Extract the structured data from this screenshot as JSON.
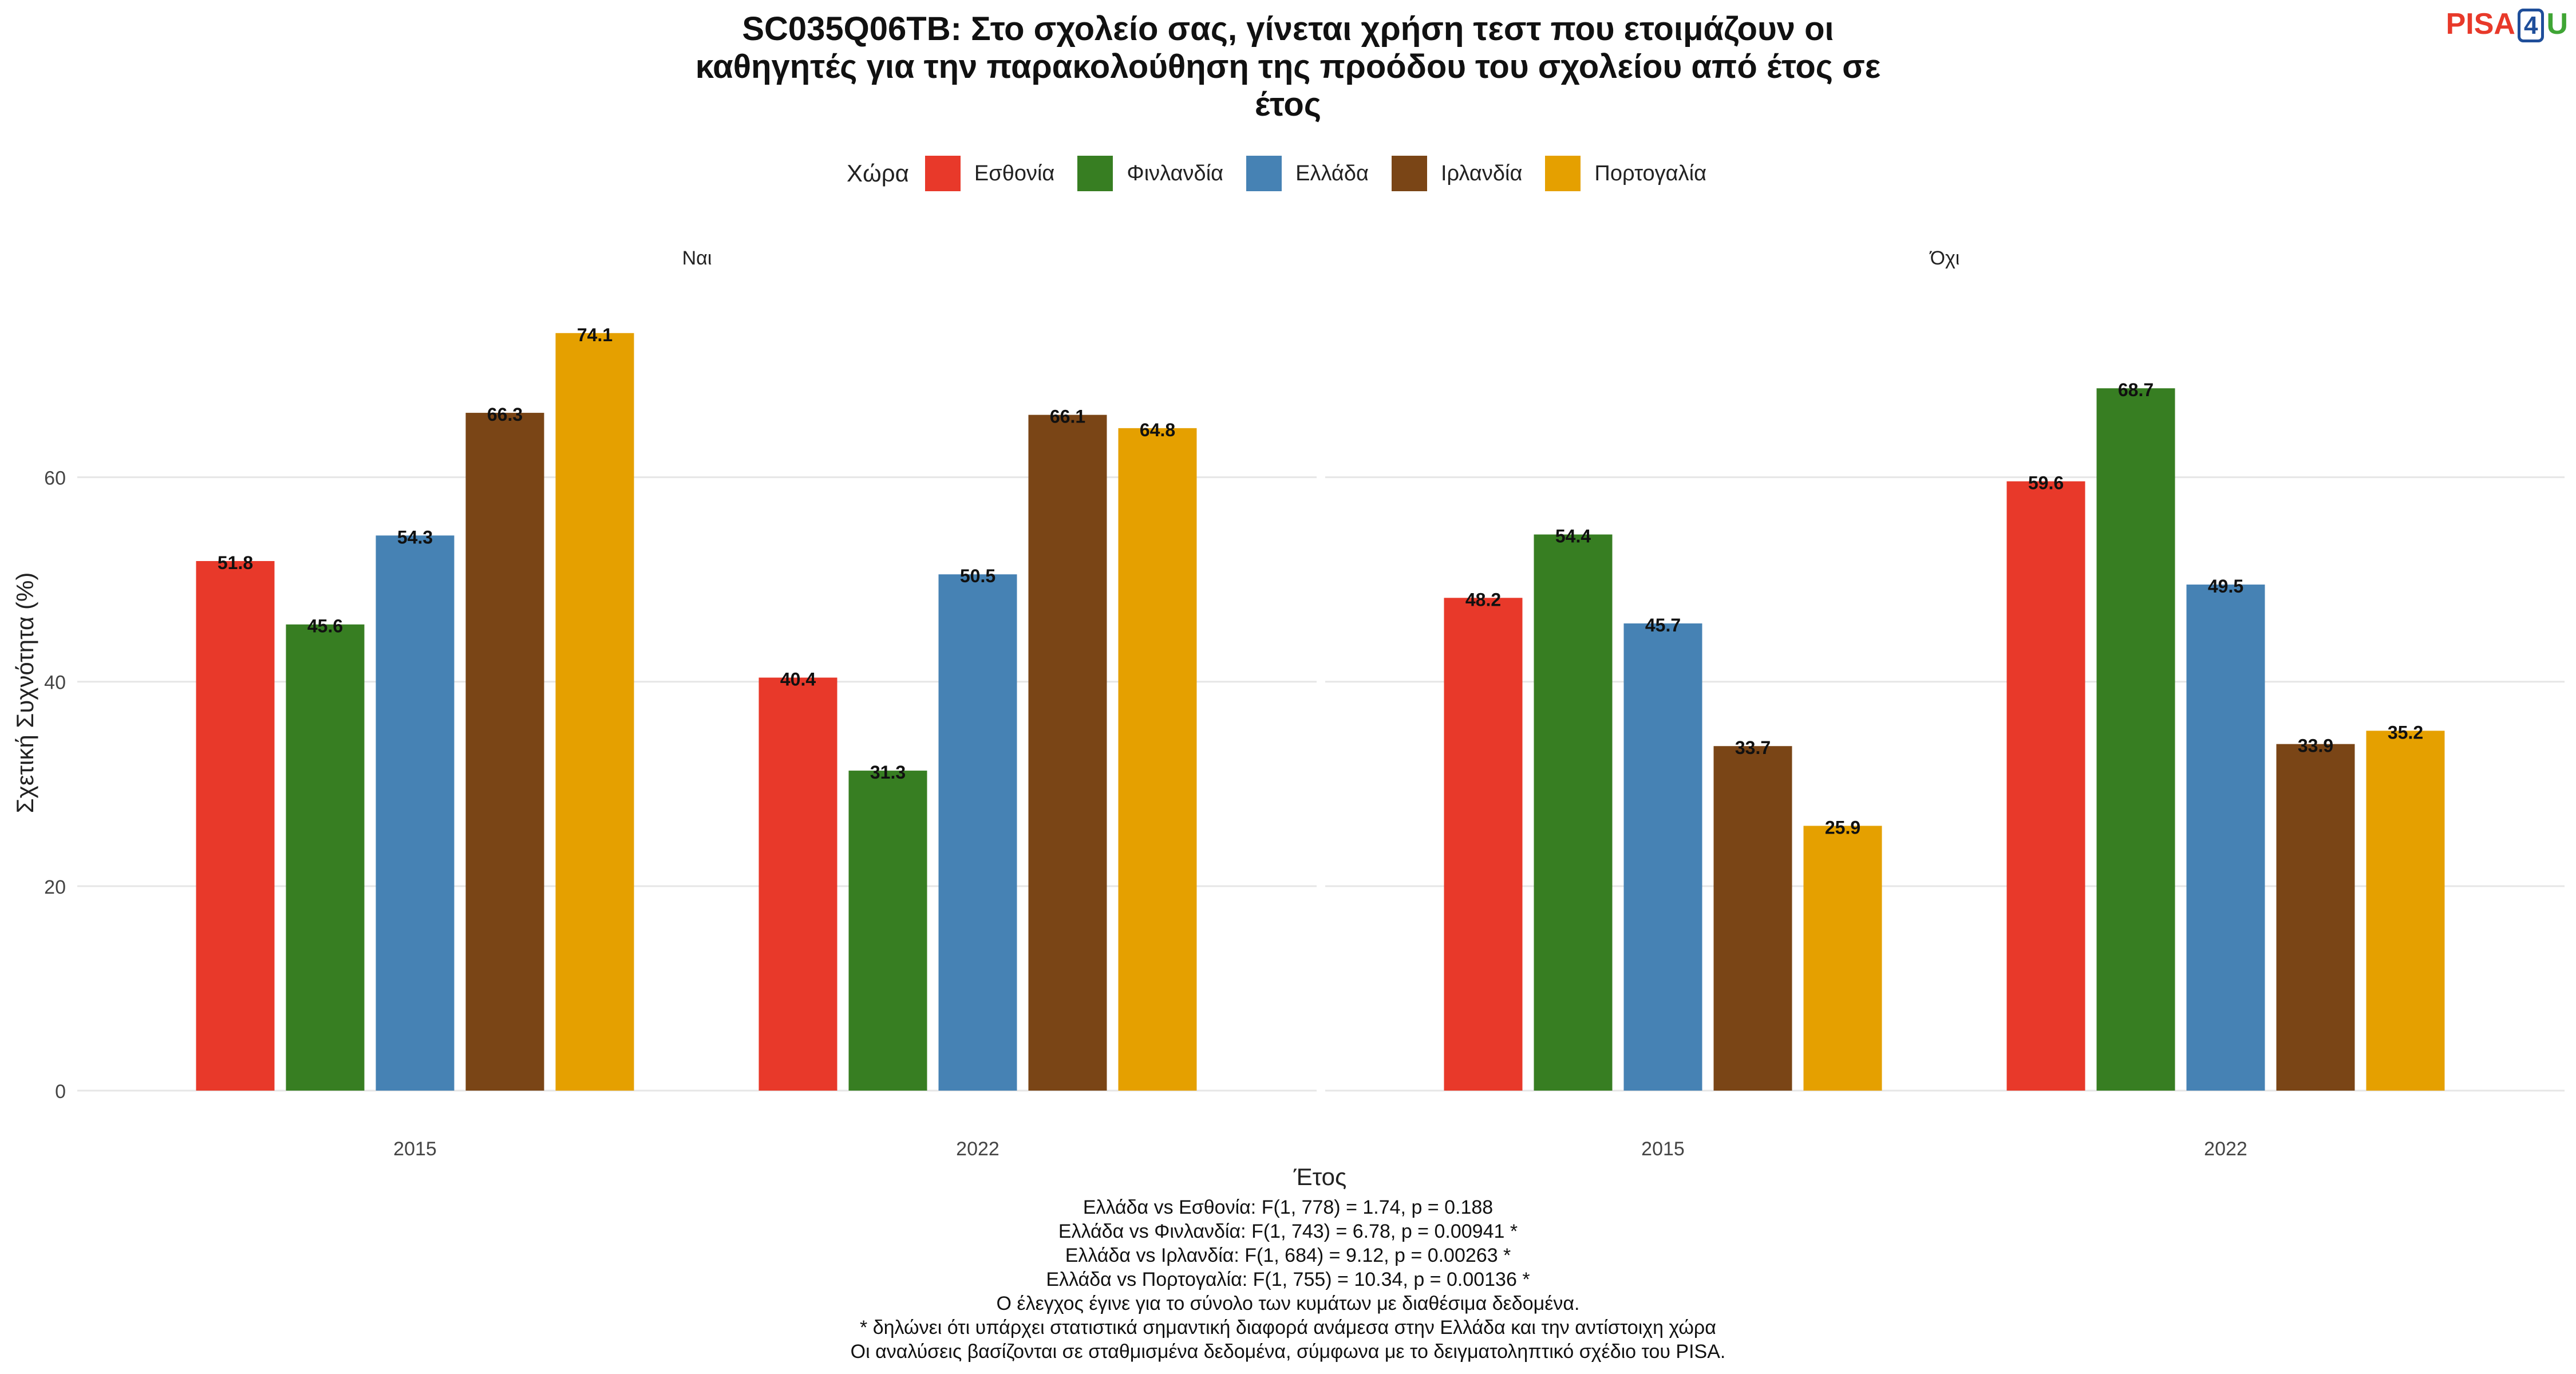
{
  "title_lines": [
    "SC035Q06TB: Στο σχολείο σας, γίνεται χρήση τεστ που ετοιμάζουν οι",
    "καθηγητές για την παρακολούθηση της προόδου του σχολείου από έτος σε",
    "έτος"
  ],
  "logo": {
    "part1": "PISA",
    "part2": "4",
    "part3": "U"
  },
  "legend": {
    "title": "Χώρα"
  },
  "caption_lines": [
    "Ελλάδα vs Εσθονία: F(1, 778) = 1.74, p = 0.188",
    "Ελλάδα vs Φινλανδία: F(1, 743) = 6.78, p = 0.00941 *",
    "Ελλάδα vs Ιρλανδία: F(1, 684) = 9.12, p = 0.00263 *",
    "Ελλάδα vs Πορτογαλία: F(1, 755) = 10.34, p = 0.00136 *",
    "Ο έλεγχος έγινε για το σύνολο των κυμάτων με διαθέσιμα δεδομένα.",
    "* δηλώνει ότι υπάρχει στατιστικά σημαντική διαφορά ανάμεσα στην Ελλάδα και την αντίστοιχη χώρα",
    "Οι αναλύσεις βασίζονται σε σταθμισμένα δεδομένα, σύμφωνα με το δειγματοληπτικό σχέδιο του PISA."
  ],
  "chart_data": {
    "type": "bar",
    "xlabel": "Έτος",
    "ylabel": "Σχετική Συχνότητα (%)",
    "ylim": [
      0,
      77
    ],
    "yticks": [
      0,
      20,
      40,
      60
    ],
    "grid": true,
    "legend_position": "top",
    "categories": [
      "2015",
      "2022"
    ],
    "series": [
      {
        "name": "Εσθονία",
        "color": "#e8392a"
      },
      {
        "name": "Φινλανδία",
        "color": "#377e22"
      },
      {
        "name": "Ελλάδα",
        "color": "#4682b4"
      },
      {
        "name": "Ιρλανδία",
        "color": "#7a4516"
      },
      {
        "name": "Πορτογαλία",
        "color": "#e5a000"
      }
    ],
    "panels": [
      {
        "label": "Ναι",
        "values": [
          [
            51.8,
            45.6,
            54.3,
            66.3,
            74.1
          ],
          [
            40.4,
            31.3,
            50.5,
            66.1,
            64.8
          ]
        ]
      },
      {
        "label": "Όχι",
        "values": [
          [
            48.2,
            54.4,
            45.7,
            33.7,
            25.9
          ],
          [
            59.6,
            68.7,
            49.5,
            33.9,
            35.2
          ]
        ]
      }
    ]
  }
}
